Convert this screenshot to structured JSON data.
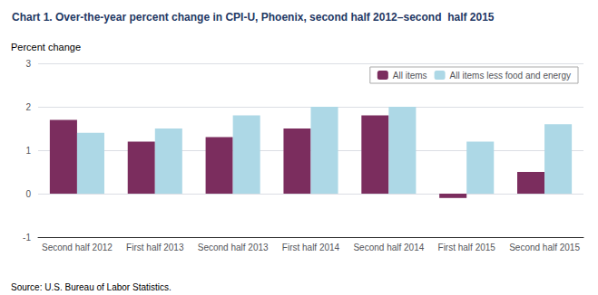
{
  "chart_data": {
    "type": "bar",
    "title": "Chart 1. Over-the-year percent change in CPI-U, Phoenix, second half 2012–second  half 2015",
    "ylabel": "Percent change",
    "source": "Source: U.S. Bureau of Labor Statistics.",
    "categories": [
      "Second half 2012",
      "First half 2013",
      "Second half 2013",
      "First half 2014",
      "Second half 2014",
      "First half 2015",
      "Second half 2015"
    ],
    "series": [
      {
        "name": "All items",
        "color": "#7B2D5E",
        "values": [
          1.7,
          1.2,
          1.3,
          1.5,
          1.8,
          -0.1,
          0.5
        ]
      },
      {
        "name": "All items less food and energy",
        "color": "#ADD8E6",
        "values": [
          1.4,
          1.5,
          1.8,
          2.0,
          2.0,
          1.2,
          1.6
        ]
      }
    ],
    "ylim": [
      -1.0,
      3.0
    ],
    "yticks": [
      -1,
      0,
      1,
      2,
      3
    ],
    "grid": true,
    "legend": "upper right"
  }
}
